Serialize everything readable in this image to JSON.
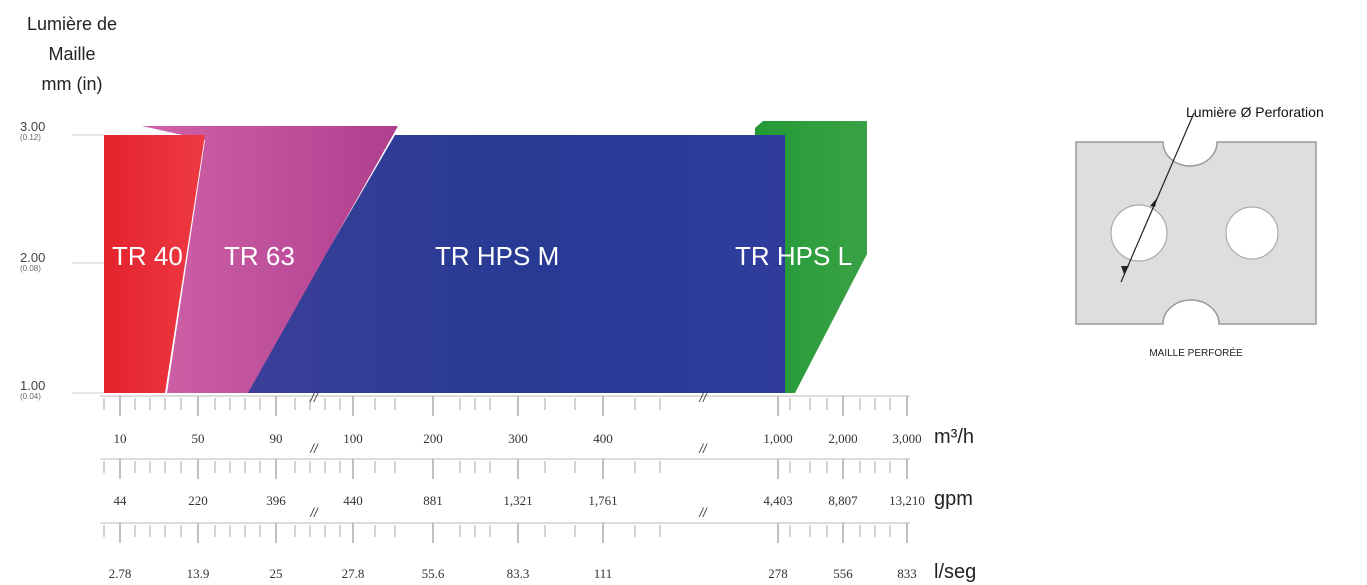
{
  "chart_data": {
    "type": "area",
    "y_axis": {
      "title_lines": [
        "Lumière de",
        "Maille",
        "mm (in)"
      ],
      "ticks": [
        {
          "value": 3.0,
          "label": "3.00",
          "sub": "(0.12)"
        },
        {
          "value": 2.0,
          "label": "2.00",
          "sub": "(0.08)"
        },
        {
          "value": 1.0,
          "label": "1.00",
          "sub": "(0.04)"
        }
      ],
      "ylim": [
        1.0,
        3.0
      ]
    },
    "series": [
      {
        "name": "TR 40",
        "color": "#e8242f",
        "flow_m3h_range": [
          0,
          40
        ],
        "mesh_mm_range": [
          1.0,
          3.0
        ]
      },
      {
        "name": "TR 63",
        "color": "#c04c9a",
        "flow_m3h_range": [
          30,
          150
        ],
        "mesh_mm_range": [
          1.0,
          3.0
        ]
      },
      {
        "name": "TR HPS M",
        "color": "#2e3f99",
        "flow_m3h_range": [
          80,
          1000
        ],
        "mesh_mm_range": [
          1.0,
          3.0
        ]
      },
      {
        "name": "TR HPS L",
        "color": "#2e9a3a",
        "flow_m3h_range": [
          900,
          3000
        ],
        "mesh_mm_range": [
          1.0,
          3.0
        ]
      }
    ],
    "x_axes": [
      {
        "unit": "m³/h",
        "ticks": [
          "10",
          "50",
          "90",
          "100",
          "200",
          "300",
          "400",
          "1,000",
          "2,000",
          "3,000"
        ]
      },
      {
        "unit": "gpm",
        "ticks": [
          "44",
          "220",
          "396",
          "440",
          "881",
          "1,321",
          "1,761",
          "4,403",
          "8,807",
          "13,210"
        ]
      },
      {
        "unit": "l/seg",
        "ticks": [
          "2.78",
          "13.9",
          "25",
          "27.8",
          "55.6",
          "83.3",
          "111",
          "278",
          "556",
          "833"
        ]
      }
    ],
    "axis_break_marker": "//"
  },
  "diagram": {
    "label": "Lumière Ø Perforation",
    "caption": "MAILLE PERFORÉE"
  },
  "colors": {
    "axis": "#999999",
    "grid": "#cccccc",
    "plate": "#dedede"
  }
}
